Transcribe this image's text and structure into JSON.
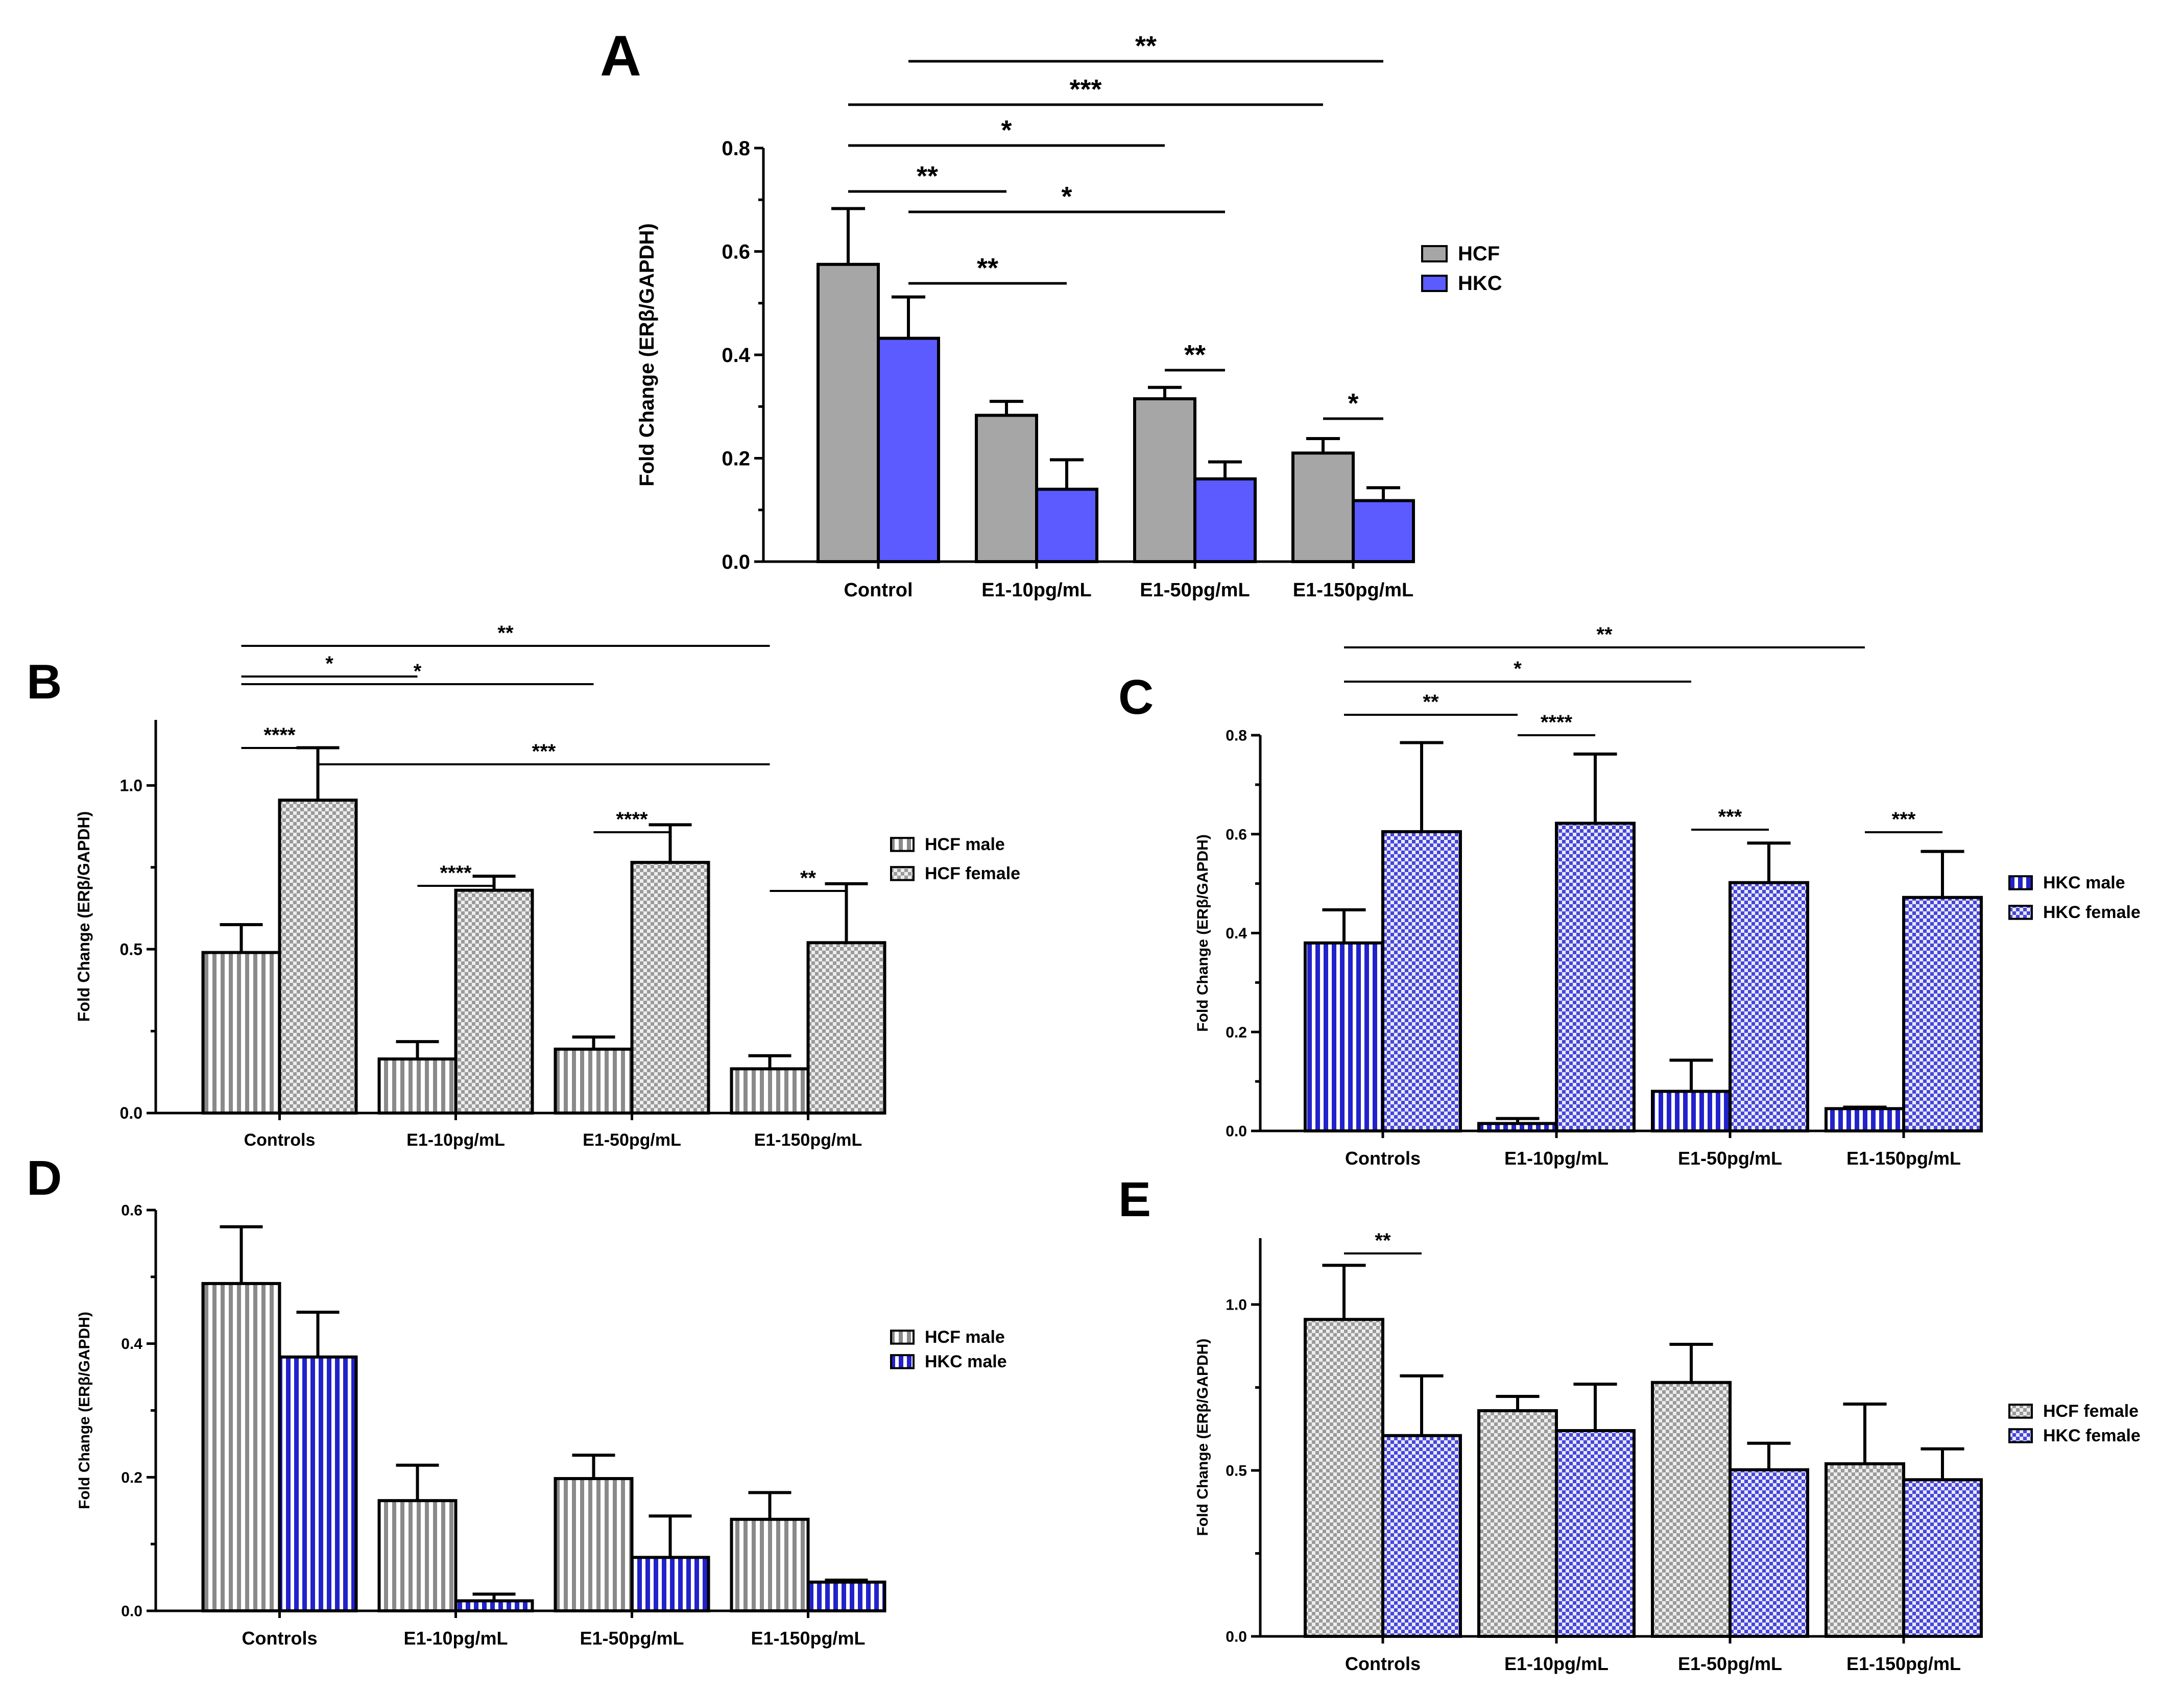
{
  "panels": [
    {
      "letter": "A",
      "ylabel": "Fold Change (ERβ/GAPDH)",
      "ylim": [
        0,
        0.8
      ],
      "yticks": [
        "0.0",
        "0.2",
        "0.4",
        "0.6",
        "0.8"
      ],
      "categories": [
        "Control",
        "E1-10pg/mL",
        "E1-50pg/mL",
        "E1-150pg/mL"
      ],
      "series": [
        {
          "name": "HCF",
          "values": [
            0.575,
            0.283,
            0.315,
            0.21
          ],
          "errors": [
            0.108,
            0.027,
            0.022,
            0.028
          ],
          "fill": "#a6a6a6",
          "pattern": "solid"
        },
        {
          "name": "HKC",
          "values": [
            0.432,
            0.14,
            0.16,
            0.118
          ],
          "errors": [
            0.08,
            0.057,
            0.033,
            0.025
          ],
          "fill": "#5b5bff",
          "pattern": "solid"
        }
      ],
      "significance": [
        {
          "label": "**",
          "from": [
            0,
            0
          ],
          "to": [
            1,
            0
          ]
        },
        {
          "label": "**",
          "from": [
            0,
            1
          ],
          "to": [
            1,
            1
          ]
        },
        {
          "label": "*",
          "from": [
            0,
            0
          ],
          "to": [
            2,
            0
          ]
        },
        {
          "label": "*",
          "from": [
            0,
            1
          ],
          "to": [
            2,
            1
          ]
        },
        {
          "label": "***",
          "from": [
            0,
            0
          ],
          "to": [
            3,
            0
          ]
        },
        {
          "label": "**",
          "from": [
            0,
            1
          ],
          "to": [
            3,
            1
          ]
        },
        {
          "label": "**",
          "from": [
            2,
            0
          ],
          "to": [
            2,
            1
          ]
        },
        {
          "label": "*",
          "from": [
            3,
            0
          ],
          "to": [
            3,
            1
          ]
        }
      ]
    },
    {
      "letter": "B",
      "ylabel": "Fold Change (ERβ/GAPDH)",
      "ylim": [
        0,
        1.2
      ],
      "yticks": [
        "0.0",
        "0.5",
        "1.0"
      ],
      "categories": [
        "Controls",
        "E1-10pg/mL",
        "E1-50pg/mL",
        "E1-150pg/mL"
      ],
      "series": [
        {
          "name": "HCF male",
          "values": [
            0.49,
            0.165,
            0.195,
            0.135
          ],
          "errors": [
            0.085,
            0.053,
            0.037,
            0.04
          ],
          "fill": "#a6a6a6",
          "pattern": "vertical-stripes"
        },
        {
          "name": "HCF female",
          "values": [
            0.955,
            0.68,
            0.765,
            0.52
          ],
          "errors": [
            0.16,
            0.043,
            0.115,
            0.18
          ],
          "fill": "#d6d6d6",
          "pattern": "checker"
        }
      ],
      "significance": [
        {
          "label": "****",
          "from": [
            0,
            0
          ],
          "to": [
            0,
            1
          ]
        },
        {
          "label": "****",
          "from": [
            1,
            0
          ],
          "to": [
            1,
            1
          ]
        },
        {
          "label": "****",
          "from": [
            2,
            0
          ],
          "to": [
            2,
            1
          ]
        },
        {
          "label": "**",
          "from": [
            3,
            0
          ],
          "to": [
            3,
            1
          ]
        },
        {
          "label": "***",
          "from": [
            0,
            1
          ],
          "to": [
            3,
            0
          ]
        },
        {
          "label": "*",
          "from": [
            0,
            0
          ],
          "to": [
            1,
            0
          ]
        },
        {
          "label": "*",
          "from": [
            0,
            0
          ],
          "to": [
            2,
            0
          ]
        },
        {
          "label": "**",
          "from": [
            0,
            0
          ],
          "to": [
            3,
            0
          ]
        }
      ]
    },
    {
      "letter": "C",
      "ylabel": "Fold Change (ERβ/GAPDH)",
      "ylim": [
        0,
        0.8
      ],
      "yticks": [
        "0.0",
        "0.2",
        "0.4",
        "0.6",
        "0.8"
      ],
      "categories": [
        "Controls",
        "E1-10pg/mL",
        "E1-50pg/mL",
        "E1-150pg/mL"
      ],
      "series": [
        {
          "name": "HKC male",
          "values": [
            0.38,
            0.015,
            0.08,
            0.045
          ],
          "errors": [
            0.067,
            0.01,
            0.063,
            0.003
          ],
          "fill": "#3a3ad8",
          "pattern": "vertical-stripes"
        },
        {
          "name": "HKC female",
          "values": [
            0.605,
            0.622,
            0.502,
            0.472
          ],
          "errors": [
            0.18,
            0.14,
            0.08,
            0.093
          ],
          "fill": "#9b9bf0",
          "pattern": "checker"
        }
      ],
      "significance": [
        {
          "label": "****",
          "from": [
            1,
            0
          ],
          "to": [
            1,
            1
          ]
        },
        {
          "label": "***",
          "from": [
            2,
            0
          ],
          "to": [
            2,
            1
          ]
        },
        {
          "label": "***",
          "from": [
            3,
            0
          ],
          "to": [
            3,
            1
          ]
        },
        {
          "label": "**",
          "from": [
            0,
            0
          ],
          "to": [
            1,
            0
          ]
        },
        {
          "label": "*",
          "from": [
            0,
            0
          ],
          "to": [
            2,
            0
          ]
        },
        {
          "label": "**",
          "from": [
            0,
            0
          ],
          "to": [
            3,
            0
          ]
        }
      ]
    },
    {
      "letter": "D",
      "ylabel": "Fold Change (ERβ/GAPDH)",
      "ylim": [
        0,
        0.6
      ],
      "yticks": [
        "0.0",
        "0.2",
        "0.4",
        "0.6"
      ],
      "categories": [
        "Controls",
        "E1-10pg/mL",
        "E1-50pg/mL",
        "E1-150pg/mL"
      ],
      "series": [
        {
          "name": "HCF male",
          "values": [
            0.49,
            0.165,
            0.198,
            0.137
          ],
          "errors": [
            0.085,
            0.053,
            0.035,
            0.04
          ],
          "fill": "#a6a6a6",
          "pattern": "vertical-stripes"
        },
        {
          "name": "HKC male",
          "values": [
            0.38,
            0.015,
            0.08,
            0.043
          ],
          "errors": [
            0.067,
            0.01,
            0.062,
            0.003
          ],
          "fill": "#3a3ad8",
          "pattern": "vertical-stripes"
        }
      ],
      "significance": []
    },
    {
      "letter": "E",
      "ylabel": "Fold Change (ERβ/GAPDH)",
      "ylim": [
        0,
        1.2
      ],
      "yticks": [
        "0.0",
        "0.5",
        "1.0"
      ],
      "categories": [
        "Controls",
        "E1-10pg/mL",
        "E1-50pg/mL",
        "E1-150pg/mL"
      ],
      "series": [
        {
          "name": "HCF female",
          "values": [
            0.955,
            0.68,
            0.765,
            0.52
          ],
          "errors": [
            0.163,
            0.043,
            0.115,
            0.18
          ],
          "fill": "#d6d6d6",
          "pattern": "checker"
        },
        {
          "name": "HKC female",
          "values": [
            0.605,
            0.62,
            0.502,
            0.472
          ],
          "errors": [
            0.18,
            0.14,
            0.08,
            0.093
          ],
          "fill": "#9b9bf0",
          "pattern": "checker"
        }
      ],
      "significance": [
        {
          "label": "**",
          "from": [
            0,
            0
          ],
          "to": [
            0,
            1
          ]
        }
      ]
    }
  ],
  "chart_data": [
    {
      "panel": "A",
      "type": "bar",
      "ylabel": "Fold Change (ERβ/GAPDH)",
      "xlabel": "",
      "ylim": [
        0,
        0.8
      ],
      "categories": [
        "Control",
        "E1-10pg/mL",
        "E1-50pg/mL",
        "E1-150pg/mL"
      ],
      "series": [
        {
          "name": "HCF",
          "values": [
            0.575,
            0.283,
            0.315,
            0.21
          ],
          "error": [
            0.108,
            0.027,
            0.022,
            0.028
          ]
        },
        {
          "name": "HKC",
          "values": [
            0.432,
            0.14,
            0.16,
            0.118
          ],
          "error": [
            0.08,
            0.057,
            0.033,
            0.025
          ]
        }
      ],
      "legend": "right",
      "grid": false
    },
    {
      "panel": "B",
      "type": "bar",
      "ylabel": "Fold Change (ERβ/GAPDH)",
      "xlabel": "",
      "ylim": [
        0,
        1.2
      ],
      "categories": [
        "Controls",
        "E1-10pg/mL",
        "E1-50pg/mL",
        "E1-150pg/mL"
      ],
      "series": [
        {
          "name": "HCF male",
          "values": [
            0.49,
            0.165,
            0.195,
            0.135
          ],
          "error": [
            0.085,
            0.053,
            0.037,
            0.04
          ]
        },
        {
          "name": "HCF female",
          "values": [
            0.955,
            0.68,
            0.765,
            0.52
          ],
          "error": [
            0.16,
            0.043,
            0.115,
            0.18
          ]
        }
      ],
      "legend": "right",
      "grid": false
    },
    {
      "panel": "C",
      "type": "bar",
      "ylabel": "Fold Change (ERβ/GAPDH)",
      "xlabel": "",
      "ylim": [
        0,
        0.8
      ],
      "categories": [
        "Controls",
        "E1-10pg/mL",
        "E1-50pg/mL",
        "E1-150pg/mL"
      ],
      "series": [
        {
          "name": "HKC male",
          "values": [
            0.38,
            0.015,
            0.08,
            0.045
          ],
          "error": [
            0.067,
            0.01,
            0.063,
            0.003
          ]
        },
        {
          "name": "HKC female",
          "values": [
            0.605,
            0.622,
            0.502,
            0.472
          ],
          "error": [
            0.18,
            0.14,
            0.08,
            0.093
          ]
        }
      ],
      "legend": "right",
      "grid": false
    },
    {
      "panel": "D",
      "type": "bar",
      "ylabel": "Fold Change (ERβ/GAPDH)",
      "xlabel": "",
      "ylim": [
        0,
        0.6
      ],
      "categories": [
        "Controls",
        "E1-10pg/mL",
        "E1-50pg/mL",
        "E1-150pg/mL"
      ],
      "series": [
        {
          "name": "HCF male",
          "values": [
            0.49,
            0.165,
            0.198,
            0.137
          ],
          "error": [
            0.085,
            0.053,
            0.035,
            0.04
          ]
        },
        {
          "name": "HKC male",
          "values": [
            0.38,
            0.015,
            0.08,
            0.043
          ],
          "error": [
            0.067,
            0.01,
            0.062,
            0.003
          ]
        }
      ],
      "legend": "right",
      "grid": false
    },
    {
      "panel": "E",
      "type": "bar",
      "ylabel": "Fold Change (ERβ/GAPDH)",
      "xlabel": "",
      "ylim": [
        0,
        1.2
      ],
      "categories": [
        "Controls",
        "E1-10pg/mL",
        "E1-50pg/mL",
        "E1-150pg/mL"
      ],
      "series": [
        {
          "name": "HCF female",
          "values": [
            0.955,
            0.68,
            0.765,
            0.52
          ],
          "error": [
            0.163,
            0.043,
            0.115,
            0.18
          ]
        },
        {
          "name": "HKC female",
          "values": [
            0.605,
            0.62,
            0.502,
            0.472
          ],
          "error": [
            0.18,
            0.14,
            0.08,
            0.093
          ]
        }
      ],
      "legend": "right",
      "grid": false
    }
  ]
}
